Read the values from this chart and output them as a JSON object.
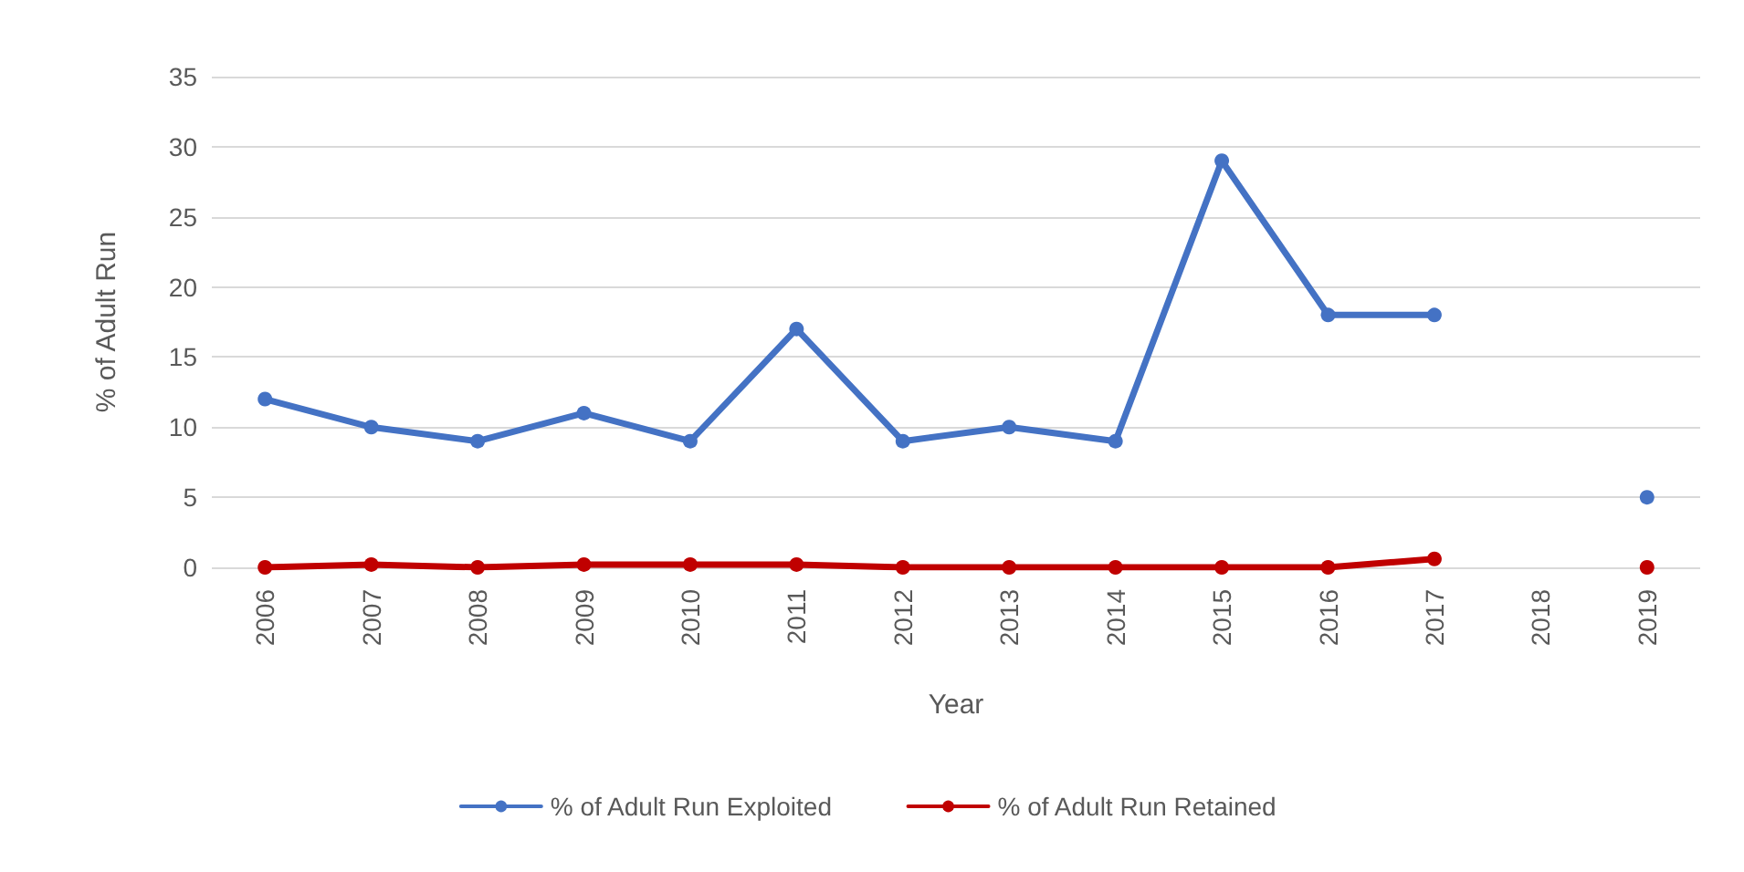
{
  "chart_data": {
    "type": "line",
    "xlabel": "Year",
    "ylabel": "% of Adult Run",
    "categories": [
      "2006",
      "2007",
      "2008",
      "2009",
      "2010",
      "2011",
      "2012",
      "2013",
      "2014",
      "2015",
      "2016",
      "2017",
      "2018",
      "2019"
    ],
    "series": [
      {
        "name": "% of Adult Run Exploited",
        "color": "#4472c4",
        "values": [
          12,
          10,
          9,
          11,
          9,
          17,
          9,
          10,
          9,
          29,
          18,
          18,
          null,
          5
        ]
      },
      {
        "name": "% of Adult Run Retained",
        "color": "#c00000",
        "values": [
          0,
          0.2,
          0,
          0.2,
          0.2,
          0.2,
          0,
          0,
          0,
          0,
          0,
          0.6,
          null,
          0
        ]
      }
    ],
    "ylim": [
      0,
      35
    ],
    "yticks": [
      0,
      5,
      10,
      15,
      20,
      25,
      30,
      35
    ],
    "grid": "y",
    "legend": "bottom",
    "marker": "circle",
    "line_style": "solid"
  }
}
